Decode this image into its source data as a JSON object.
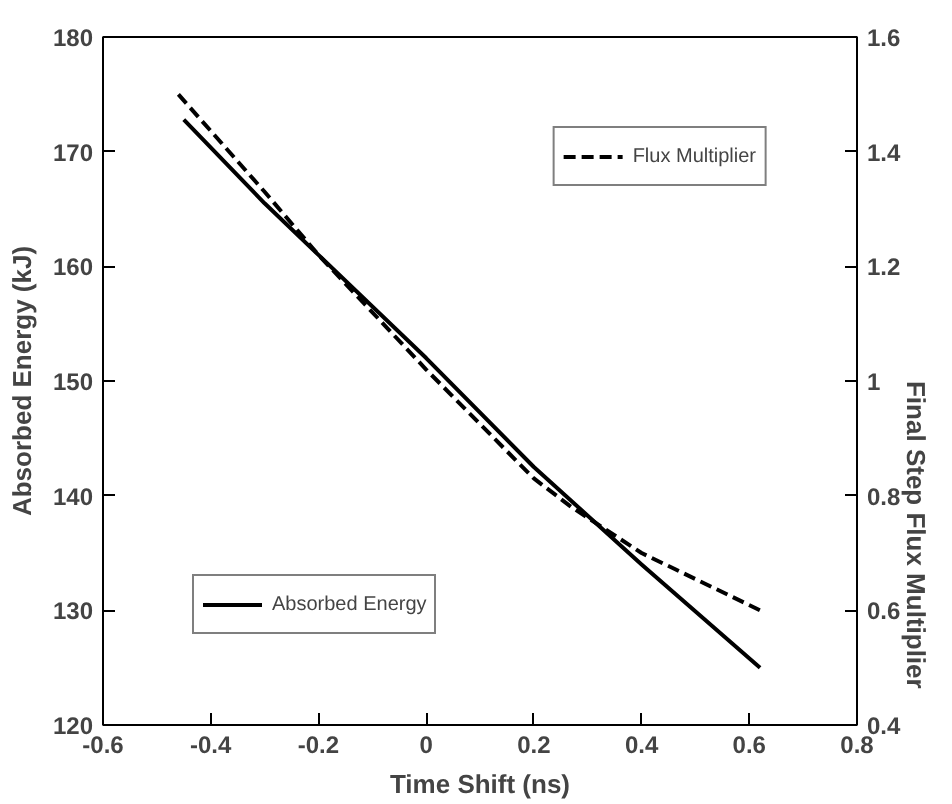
{
  "chart_data": {
    "type": "line",
    "xlabel": "Time Shift (ns)",
    "ylabel": "Absorbed Energy (kJ)",
    "y2label": "Final Step Flux Multiplier",
    "xlim": [
      -0.6,
      0.8
    ],
    "xticks": [
      -0.6,
      -0.4,
      -0.2,
      0,
      0.2,
      0.4,
      0.6,
      0.8
    ],
    "ylim": [
      120,
      180
    ],
    "yticks": [
      120,
      130,
      140,
      150,
      160,
      170,
      180
    ],
    "y2lim": [
      0.4,
      1.6
    ],
    "y2ticks": [
      0.4,
      0.6,
      0.8,
      1,
      1.2,
      1.4,
      1.6
    ],
    "grid": false,
    "marker": "none",
    "legend": [
      "bottom left",
      "top right"
    ],
    "series": [
      {
        "name": "Absorbed Energy",
        "color": "#000000",
        "line_style": "solid",
        "x": [
          -0.45,
          -0.3,
          -0.2,
          0,
          0.2,
          0.4,
          0.62
        ],
        "values": [
          172.8,
          165.5,
          161,
          152,
          142.5,
          134,
          125
        ]
      },
      {
        "name": "Flux Multiplier",
        "color": "#000000",
        "line_style": "dashed",
        "axis": "y2",
        "x": [
          -0.46,
          -0.3,
          -0.2,
          0,
          0.2,
          0.27,
          0.4,
          0.62
        ],
        "values": [
          1.5,
          1.33,
          1.22,
          1.02,
          0.83,
          0.78,
          0.7,
          0.6
        ]
      }
    ]
  }
}
